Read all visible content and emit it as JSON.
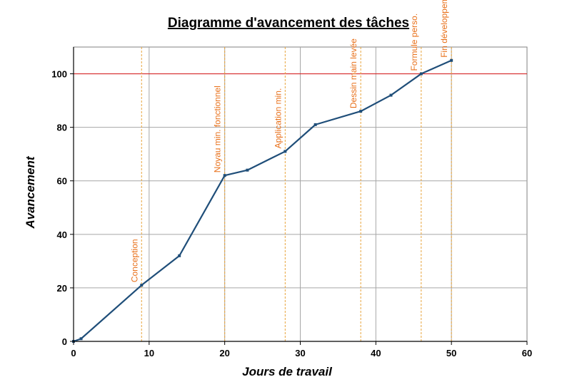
{
  "chart_data": {
    "type": "line",
    "title": "Diagramme d'avancement des tâches",
    "xlabel": "Jours de travail",
    "ylabel": "Avancement",
    "xlim": [
      0,
      60
    ],
    "ylim": [
      0,
      110
    ],
    "xticks": [
      0,
      10,
      20,
      30,
      40,
      50,
      60
    ],
    "yticks": [
      0,
      20,
      40,
      60,
      80,
      100
    ],
    "grid": true,
    "legend": "none",
    "series": [
      {
        "color": "#1f4e79",
        "x": [
          0,
          1,
          9,
          14,
          20,
          23,
          28,
          32,
          38,
          42,
          46,
          50
        ],
        "y": [
          0,
          1,
          21,
          32,
          62,
          64,
          71,
          81,
          86,
          92,
          100,
          105
        ]
      }
    ],
    "reference_line": {
      "y": 100,
      "color": "#d62728"
    },
    "milestones": [
      {
        "x": 9,
        "label": "Conception"
      },
      {
        "x": 20,
        "label": "Noyau min. fonctionnel"
      },
      {
        "x": 28,
        "label": "Application min."
      },
      {
        "x": 38,
        "label": "Dessin main levée"
      },
      {
        "x": 46,
        "label": "Formule perso."
      },
      {
        "x": 50,
        "label": "Fin développement"
      }
    ],
    "milestone_color": "#e8a33a",
    "annotation_color": "#e8701a"
  }
}
